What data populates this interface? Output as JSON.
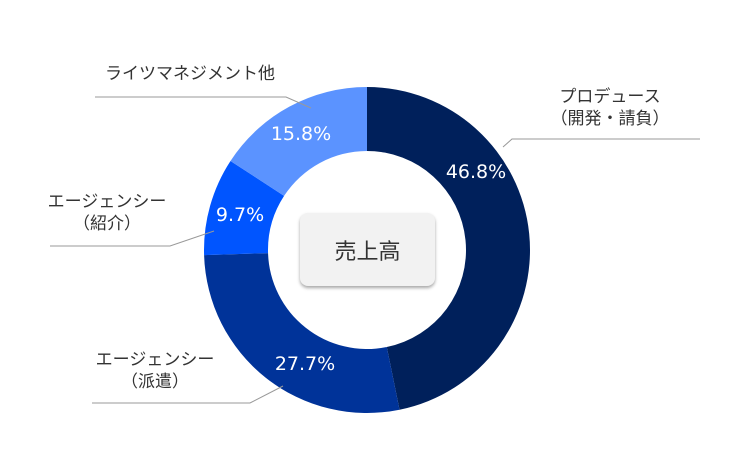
{
  "chart_data": {
    "type": "pie",
    "variant": "donut",
    "title": "売上高",
    "categories": [
      "プロデュース（開発・請負）",
      "エージェンシー（派遣）",
      "エージェンシー（紹介）",
      "ライツマネジメント他"
    ],
    "values": [
      46.8,
      27.7,
      9.7,
      15.8
    ],
    "unit": "%",
    "colors": [
      "#00205b",
      "#003399",
      "#0055ff",
      "#5b93ff"
    ],
    "start_angle": "12 o'clock, clockwise",
    "legend": "none (leader-line labels)"
  },
  "center_label": "売上高",
  "labels": [
    {
      "line1": "プロデュース",
      "line2": "（開発・請負）",
      "pct": "46.8%"
    },
    {
      "line1": "エージェンシー",
      "line2": "（派遣）",
      "pct": "27.7%"
    },
    {
      "line1": "エージェンシー",
      "line2": "（紹介）",
      "pct": "9.7%"
    },
    {
      "line1": "ライツマネジメント他",
      "line2": "",
      "pct": "15.8%"
    }
  ]
}
